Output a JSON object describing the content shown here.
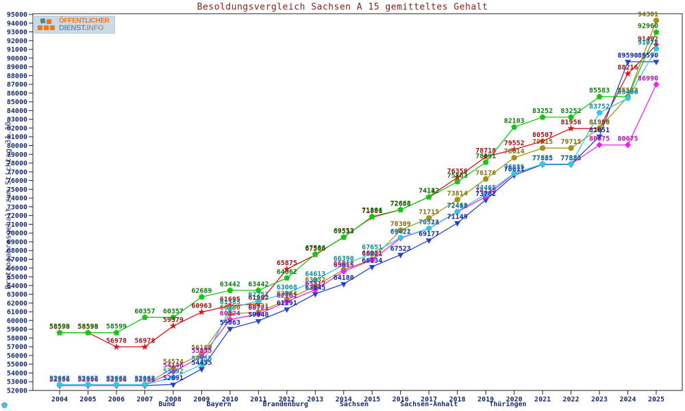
{
  "logo": {
    "line1": "ÖFFENTLICHER",
    "line2_strong": "DIENST.",
    "line2_light": "INFO"
  },
  "chart_data": {
    "type": "line",
    "title": "Besoldungsvergleich Sachsen A 15 gemitteltes Gehalt",
    "ylabel": "Bruttojahresgehalt zum Stichtag 31.10.",
    "categories": [
      2004,
      2005,
      2006,
      2007,
      2008,
      2009,
      2010,
      2011,
      2012,
      2013,
      2014,
      2015,
      2016,
      2017,
      2018,
      2019,
      2020,
      2021,
      2022,
      2023,
      2024,
      2025
    ],
    "ylim": [
      52000,
      95000
    ],
    "ytick_step": 1000,
    "grid": false,
    "legend_position": "bottom",
    "axis_text_color": "#1b2a6b",
    "series": [
      {
        "name": "Bund",
        "color": "#dd1111",
        "label_color": "#991111",
        "marker": "star",
        "values": [
          58598,
          58598,
          56978,
          56978,
          59379,
          60963,
          61695,
          61902,
          65875,
          67504,
          69553,
          71801,
          72658,
          74142,
          76359,
          78718,
          79552,
          80507,
          81956,
          81956,
          88216,
          91492
        ]
      },
      {
        "name": "Bayern",
        "color": "#15c615",
        "label_color": "#0b7d0b",
        "marker": "pentagon",
        "values": [
          58599,
          58599,
          58599,
          60357,
          60357,
          62689,
          63442,
          63442,
          64862,
          67586,
          69512,
          71884,
          72668,
          74112,
          75863,
          78091,
          82103,
          83252,
          83252,
          85583,
          85583,
          92960
        ]
      },
      {
        "name": "Brandenburg",
        "color": "#2244cc",
        "label_color": "#1122aa",
        "marker": "triangle-down",
        "values": [
          52556,
          52556,
          52556,
          52556,
          52691,
          54455,
          59063,
          59948,
          61291,
          63045,
          64180,
          66134,
          67523,
          69177,
          71149,
          73782,
          76611,
          77835,
          77835,
          81051,
          89590,
          89590
        ]
      },
      {
        "name": "Sachsen",
        "color": "#a39418",
        "label_color": "#7d7010",
        "marker": "circle",
        "values": [
          52663,
          52663,
          52663,
          52663,
          54574,
          56180,
          60780,
          60921,
          62364,
          63932,
          65812,
          66981,
          70309,
          71715,
          73814,
          76176,
          78614,
          79715,
          79715,
          81978,
          85583,
          94301
        ]
      },
      {
        "name": "Sachsen-Anhalt",
        "color": "#ee22ee",
        "label_color": "#aa11aa",
        "marker": "diamond",
        "values": [
          52556,
          52556,
          52556,
          52556,
          54146,
          55855,
          60124,
          60721,
          62161,
          63512,
          65615,
          66921,
          69421,
          70511,
          72411,
          74155,
          76815,
          77885,
          77885,
          80075,
          80075,
          86990
        ]
      },
      {
        "name": "Thüringen",
        "color": "#2fc9e0",
        "label_color": "#0e8a9e",
        "marker": "hexagon",
        "values": [
          52663,
          52663,
          52663,
          52663,
          53492,
          54955,
          61383,
          62251,
          63068,
          64613,
          66390,
          67651,
          69472,
          70524,
          72460,
          74465,
          76835,
          77885,
          77885,
          83752,
          85406,
          91078
        ]
      }
    ]
  }
}
